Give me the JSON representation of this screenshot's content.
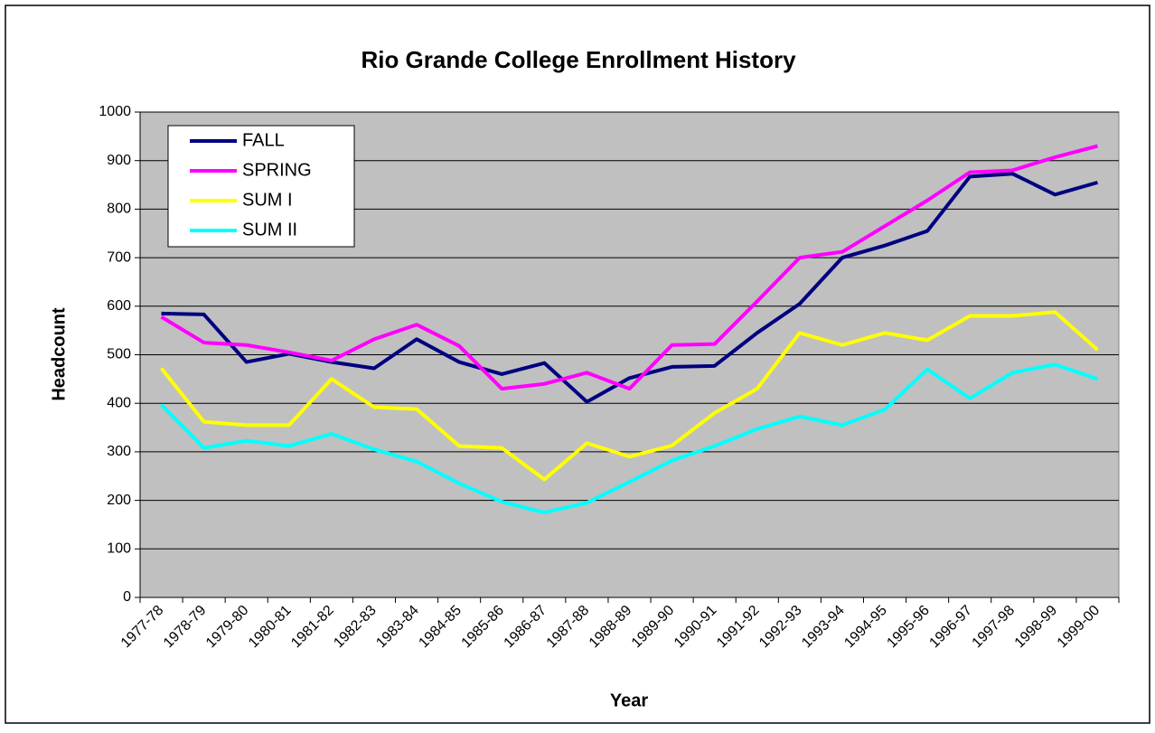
{
  "chart_data": {
    "type": "line",
    "title": "Rio Grande College Enrollment History",
    "xlabel": "Year",
    "ylabel": "Headcount",
    "categories": [
      "1977-78",
      "1978-79",
      "1979-80",
      "1980-81",
      "1981-82",
      "1982-83",
      "1983-84",
      "1984-85",
      "1985-86",
      "1986-87",
      "1987-88",
      "1988-89",
      "1989-90",
      "1990-91",
      "1991-92",
      "1992-93",
      "1993-94",
      "1994-95",
      "1995-96",
      "1996-97",
      "1997-98",
      "1998-99",
      "1999-00"
    ],
    "series": [
      {
        "name": "FALL",
        "color": "#000080",
        "values": [
          585,
          583,
          485,
          502,
          485,
          472,
          532,
          485,
          460,
          483,
          403,
          452,
          475,
          477,
          545,
          605,
          700,
          725,
          755,
          867,
          873,
          830,
          855
        ]
      },
      {
        "name": "SPRING",
        "color": "#ff00ff",
        "values": [
          578,
          525,
          520,
          505,
          488,
          532,
          562,
          518,
          430,
          440,
          463,
          430,
          520,
          522,
          610,
          700,
          712,
          765,
          818,
          876,
          880,
          907,
          930
        ]
      },
      {
        "name": "SUM I",
        "color": "#ffff00",
        "values": [
          472,
          362,
          355,
          355,
          450,
          392,
          388,
          312,
          308,
          243,
          318,
          290,
          313,
          380,
          430,
          545,
          520,
          545,
          530,
          580,
          580,
          588,
          510
        ]
      },
      {
        "name": "SUM II",
        "color": "#00ffff",
        "values": [
          397,
          308,
          323,
          312,
          337,
          305,
          280,
          235,
          197,
          175,
          195,
          238,
          282,
          312,
          347,
          373,
          355,
          387,
          470,
          410,
          463,
          480,
          450
        ]
      }
    ],
    "ylim": [
      0,
      1000
    ],
    "yticks": [
      0,
      100,
      200,
      300,
      400,
      500,
      600,
      700,
      800,
      900,
      1000
    ],
    "grid": true,
    "legend": "upper left"
  }
}
